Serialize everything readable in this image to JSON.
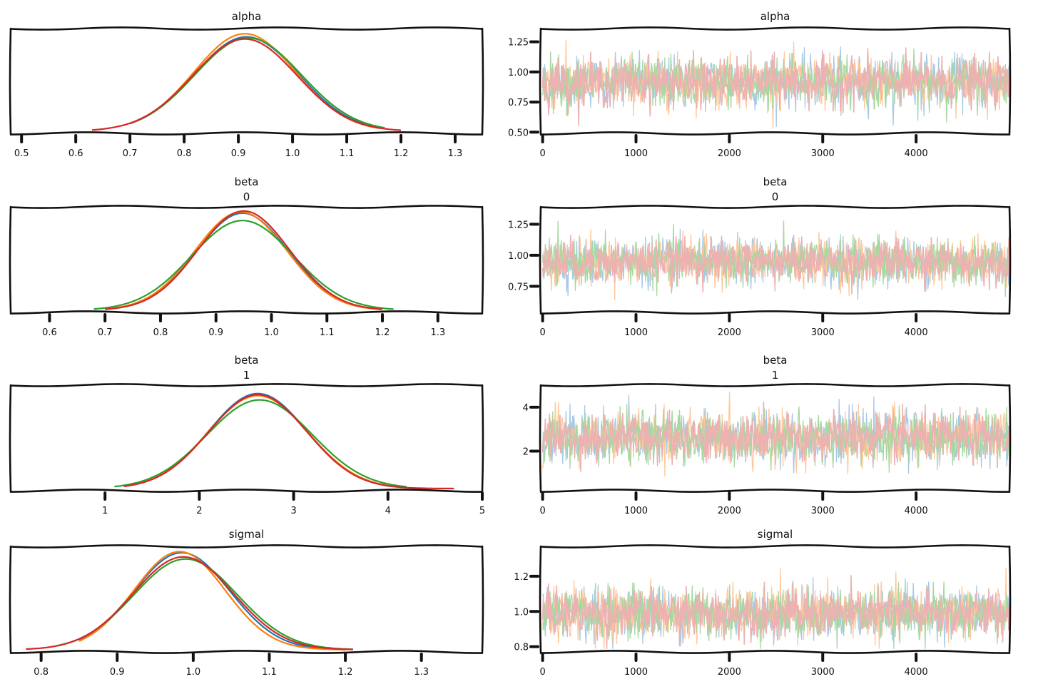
{
  "chart_data": {
    "type": "line",
    "chain_colors": [
      "#1f77b4",
      "#ff7f0e",
      "#2ca02c",
      "#d62728"
    ],
    "panels": [
      {
        "kind": "density",
        "title": "alpha",
        "subtitle": "",
        "xlim": [
          0.48,
          1.35
        ],
        "xticks": [
          0.5,
          0.6,
          0.7,
          0.8,
          0.9,
          1.0,
          1.1,
          1.2,
          1.3
        ],
        "xtick_labels": [
          "0.5",
          "0.6",
          "0.7",
          "0.8",
          "0.9",
          "1.0",
          "1.1",
          "1.2",
          "1.3"
        ],
        "series": [
          {
            "mean": 0.915,
            "sd": 0.096,
            "peak": 0.9,
            "from": 0.7,
            "to": 1.16
          },
          {
            "mean": 0.912,
            "sd": 0.094,
            "peak": 0.93,
            "from": 0.7,
            "to": 1.16
          },
          {
            "mean": 0.918,
            "sd": 0.098,
            "peak": 0.89,
            "from": 0.7,
            "to": 1.17
          },
          {
            "mean": 0.912,
            "sd": 0.096,
            "peak": 0.88,
            "from": 0.63,
            "to": 1.2
          }
        ]
      },
      {
        "kind": "trace",
        "title": "alpha",
        "subtitle": "",
        "xlim": [
          -20,
          5000
        ],
        "ylim": [
          0.49,
          1.36
        ],
        "xticks": [
          0,
          1000,
          2000,
          3000,
          4000
        ],
        "xtick_labels": [
          "0",
          "1000",
          "2000",
          "3000",
          "4000"
        ],
        "yticks": [
          0.5,
          0.75,
          1.0,
          1.25
        ],
        "ytick_labels": [
          "0.50",
          "0.75",
          "1.00",
          "1.25"
        ],
        "center": 0.915,
        "sd": 0.096,
        "max": 1.31,
        "min": 0.53
      },
      {
        "kind": "density",
        "title": "beta",
        "subtitle": "0",
        "xlim": [
          0.53,
          1.38
        ],
        "xticks": [
          0.6,
          0.7,
          0.8,
          0.9,
          1.0,
          1.1,
          1.2,
          1.3
        ],
        "xtick_labels": [
          "0.6",
          "0.7",
          "0.8",
          "0.9",
          "1.0",
          "1.1",
          "1.2",
          "1.3"
        ],
        "series": [
          {
            "mean": 0.948,
            "sd": 0.083,
            "peak": 0.92,
            "from": 0.7,
            "to": 1.19
          },
          {
            "mean": 0.945,
            "sd": 0.083,
            "peak": 0.93,
            "from": 0.7,
            "to": 1.2
          },
          {
            "mean": 0.948,
            "sd": 0.092,
            "peak": 0.85,
            "from": 0.68,
            "to": 1.22
          },
          {
            "mean": 0.95,
            "sd": 0.083,
            "peak": 0.94,
            "from": 0.7,
            "to": 1.2
          }
        ]
      },
      {
        "kind": "trace",
        "title": "beta",
        "subtitle": "0",
        "xlim": [
          -20,
          5000
        ],
        "ylim": [
          0.54,
          1.39
        ],
        "xticks": [
          0,
          1000,
          2000,
          3000,
          4000
        ],
        "xtick_labels": [
          "0",
          "1000",
          "2000",
          "3000",
          "4000"
        ],
        "yticks": [
          0.75,
          1.0,
          1.25
        ],
        "ytick_labels": [
          "0.75",
          "1.00",
          "1.25"
        ],
        "center": 0.948,
        "sd": 0.083,
        "max": 1.3,
        "min": 0.57
      },
      {
        "kind": "density",
        "title": "beta",
        "subtitle": "1",
        "xlim": [
          0.0,
          5.0
        ],
        "xticks": [
          1,
          2,
          3,
          4,
          5
        ],
        "xtick_labels": [
          "1",
          "2",
          "3",
          "4",
          "5"
        ],
        "series": [
          {
            "mean": 2.62,
            "sd": 0.52,
            "peak": 0.9,
            "from": 1.2,
            "to": 4.1
          },
          {
            "mean": 2.62,
            "sd": 0.53,
            "peak": 0.88,
            "from": 1.2,
            "to": 4.1
          },
          {
            "mean": 2.64,
            "sd": 0.56,
            "peak": 0.84,
            "from": 1.1,
            "to": 4.2
          },
          {
            "mean": 2.62,
            "sd": 0.52,
            "peak": 0.89,
            "from": 1.2,
            "to": 4.7
          }
        ]
      },
      {
        "kind": "trace",
        "title": "beta",
        "subtitle": "1",
        "xlim": [
          -20,
          5000
        ],
        "ylim": [
          0.2,
          5.0
        ],
        "xticks": [
          0,
          1000,
          2000,
          3000,
          4000
        ],
        "xtick_labels": [
          "0",
          "1000",
          "2000",
          "3000",
          "4000"
        ],
        "yticks": [
          2,
          4
        ],
        "ytick_labels": [
          "2",
          "4"
        ],
        "center": 2.62,
        "sd": 0.53,
        "max": 4.7,
        "min": 0.6
      },
      {
        "kind": "density",
        "title": "sigmal",
        "subtitle": "",
        "xlim": [
          0.76,
          1.38
        ],
        "xticks": [
          0.8,
          0.9,
          1.0,
          1.1,
          1.2,
          1.3
        ],
        "xtick_labels": [
          "0.8",
          "0.9",
          "1.0",
          "1.1",
          "1.2",
          "1.3"
        ],
        "series": [
          {
            "mean": 0.985,
            "sd": 0.063,
            "peak": 0.92,
            "from": 0.85,
            "to": 1.2
          },
          {
            "mean": 0.982,
            "sd": 0.06,
            "peak": 0.93,
            "from": 0.85,
            "to": 1.2
          },
          {
            "mean": 0.99,
            "sd": 0.068,
            "peak": 0.86,
            "from": 0.82,
            "to": 1.21
          },
          {
            "mean": 0.987,
            "sd": 0.066,
            "peak": 0.88,
            "from": 0.78,
            "to": 1.21
          }
        ]
      },
      {
        "kind": "trace",
        "title": "sigmal",
        "subtitle": "",
        "xlim": [
          -20,
          5000
        ],
        "ylim": [
          0.77,
          1.37
        ],
        "xticks": [
          0,
          1000,
          2000,
          3000,
          4000
        ],
        "xtick_labels": [
          "0",
          "1000",
          "2000",
          "3000",
          "4000"
        ],
        "yticks": [
          0.8,
          1.0,
          1.2
        ],
        "ytick_labels": [
          "0.8",
          "1.0",
          "1.2"
        ],
        "center": 0.99,
        "sd": 0.065,
        "max": 1.34,
        "min": 0.79
      }
    ]
  }
}
